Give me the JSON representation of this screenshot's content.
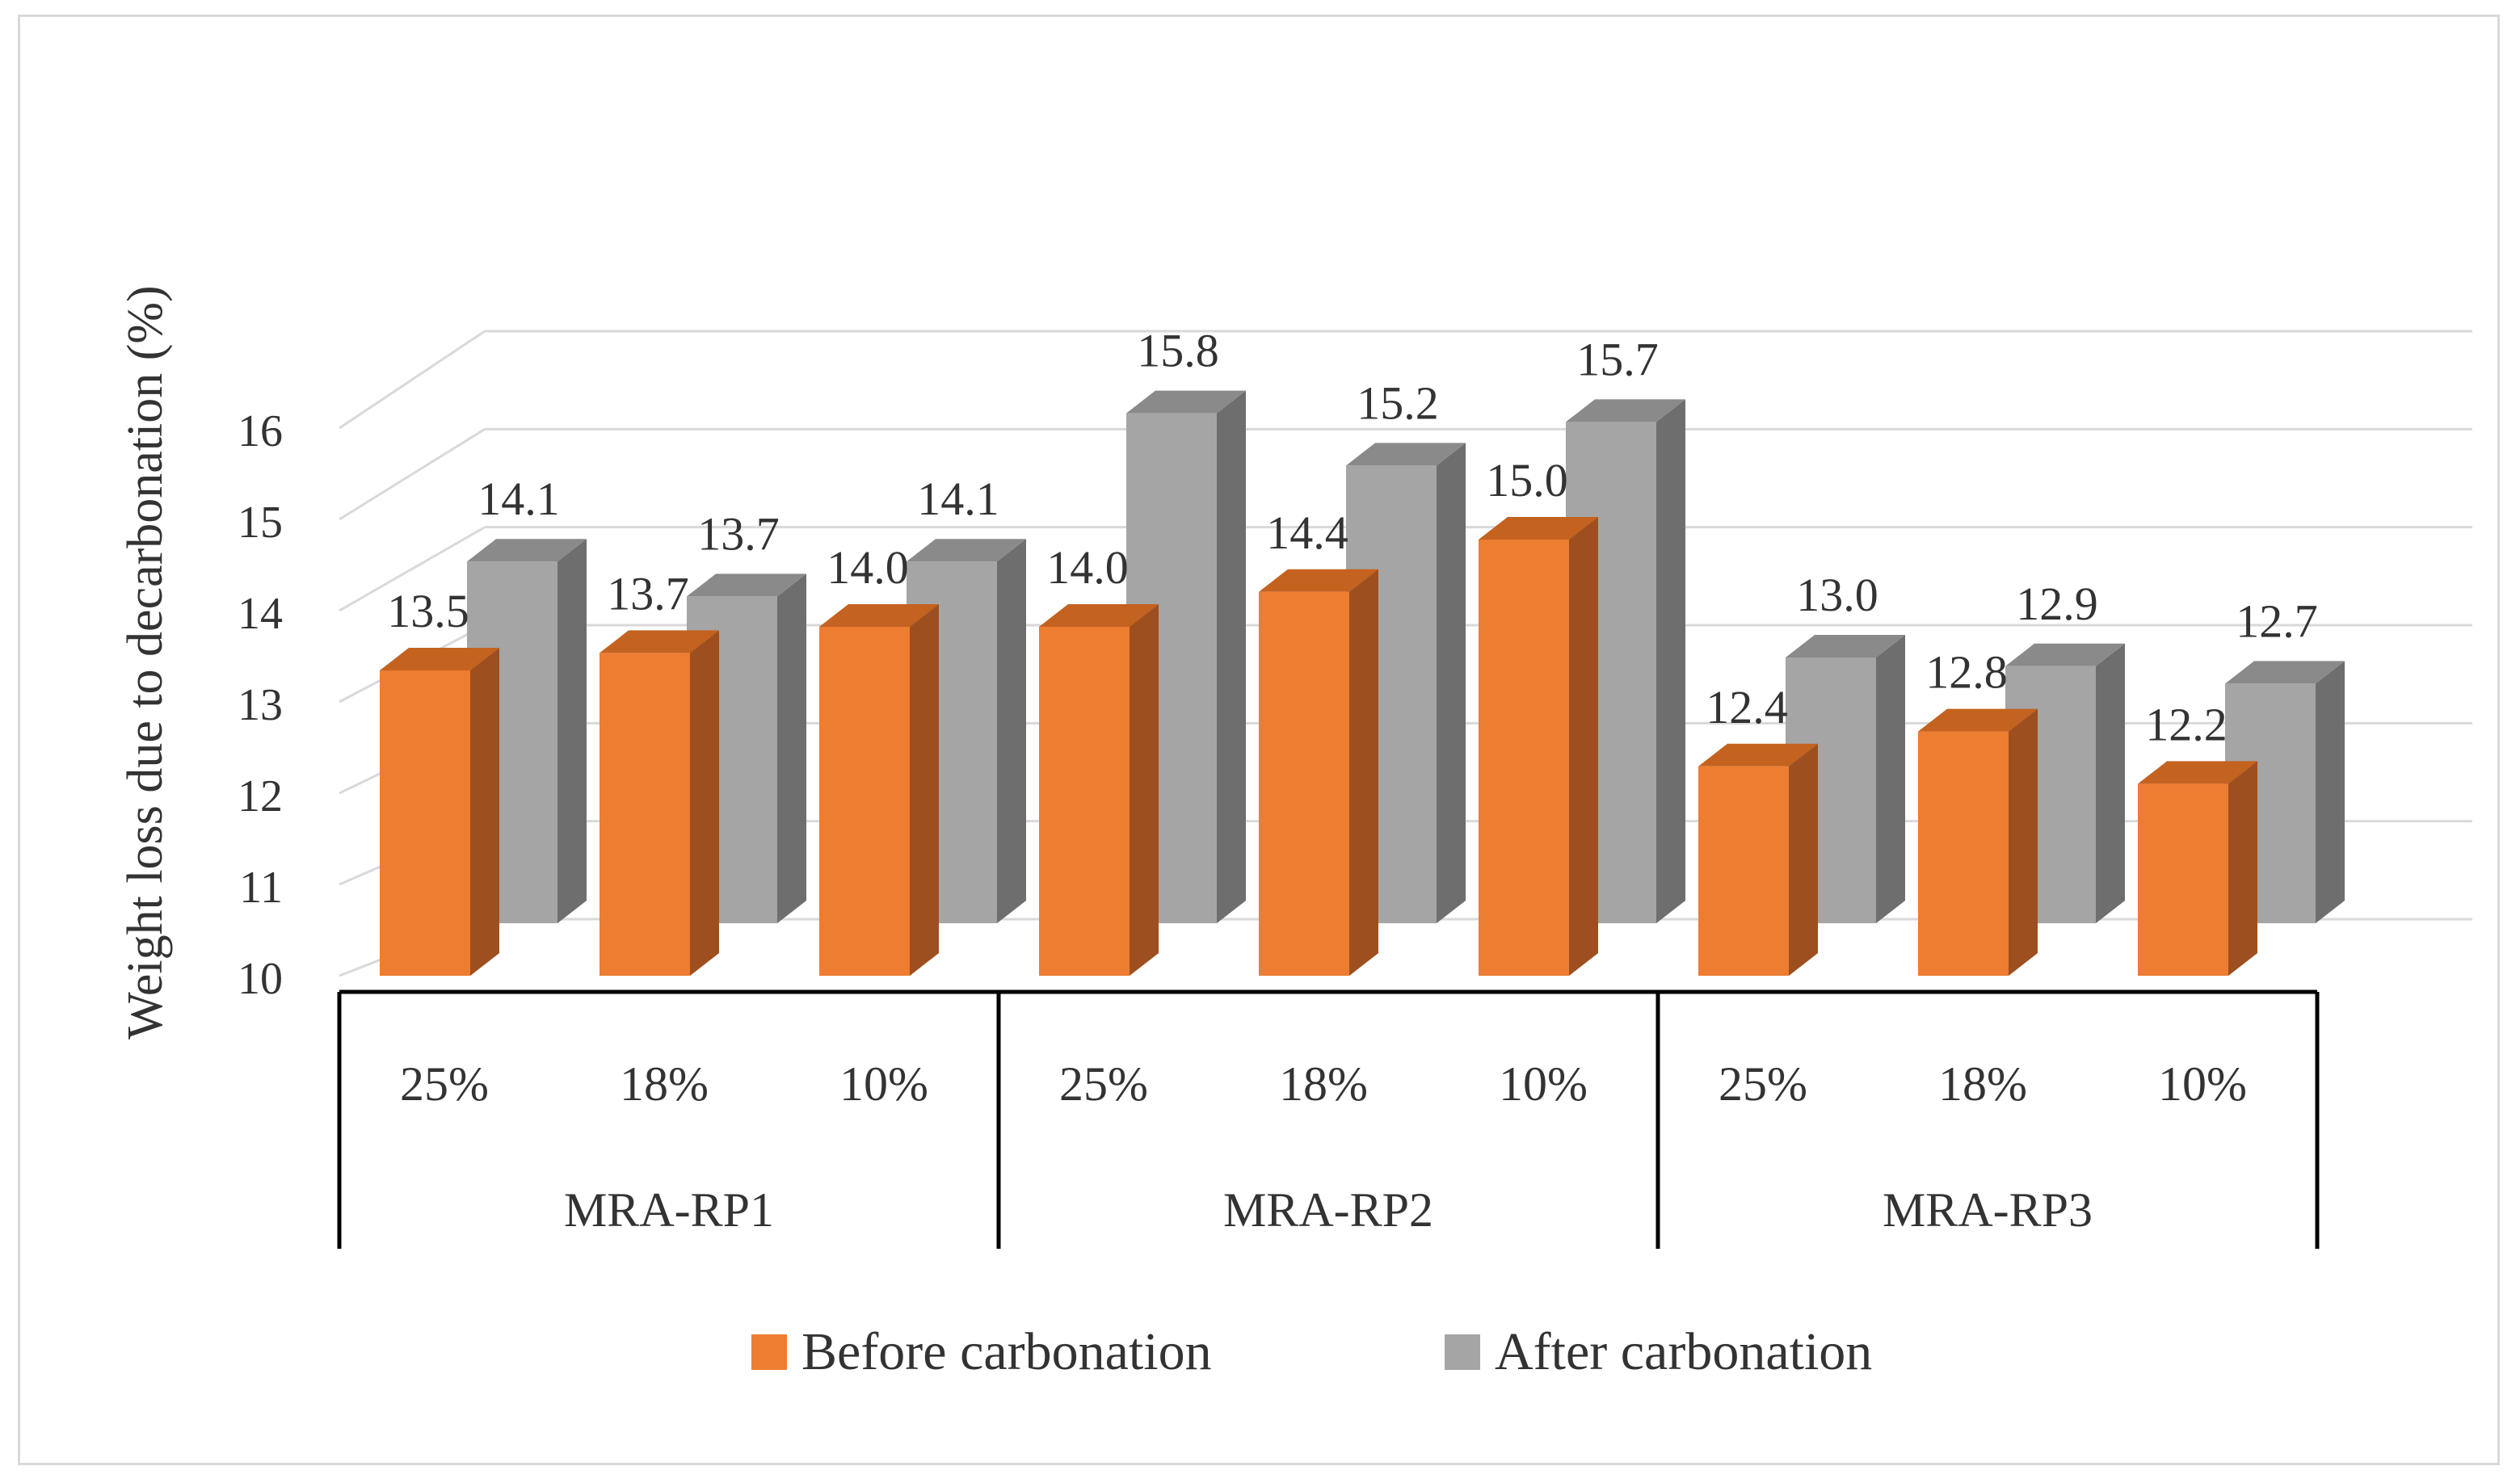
{
  "chart_data": {
    "type": "bar",
    "style": "3d-clustered-column",
    "title": "",
    "ylabel": "Weight loss due to decarbonation (%)",
    "xlabel": "",
    "ylim": [
      10,
      16
    ],
    "yticks": [
      10,
      11,
      12,
      13,
      14,
      15,
      16
    ],
    "groups": [
      "MRA-RP1",
      "MRA-RP2",
      "MRA-RP3"
    ],
    "categories": [
      "25%",
      "18%",
      "10%",
      "25%",
      "18%",
      "10%",
      "25%",
      "18%",
      "10%"
    ],
    "series": [
      {
        "name": "Before carbonation",
        "color": "#ED7D31",
        "side_color": "#9E4F1F",
        "top_color": "#C4621F",
        "values": [
          13.5,
          13.7,
          14.0,
          14.0,
          14.4,
          15.0,
          12.4,
          12.8,
          12.2
        ]
      },
      {
        "name": "After carbonation",
        "color": "#A5A5A5",
        "side_color": "#6E6E6E",
        "top_color": "#8A8A8A",
        "values": [
          14.1,
          13.7,
          14.1,
          15.8,
          15.2,
          15.7,
          13.0,
          12.9,
          12.7
        ]
      }
    ],
    "legend_position": "bottom",
    "grid": true,
    "colors": {
      "gridline": "#D9D9D9",
      "axis_table": "#000000",
      "text": "#333333",
      "border": "#D9D9D9"
    }
  }
}
